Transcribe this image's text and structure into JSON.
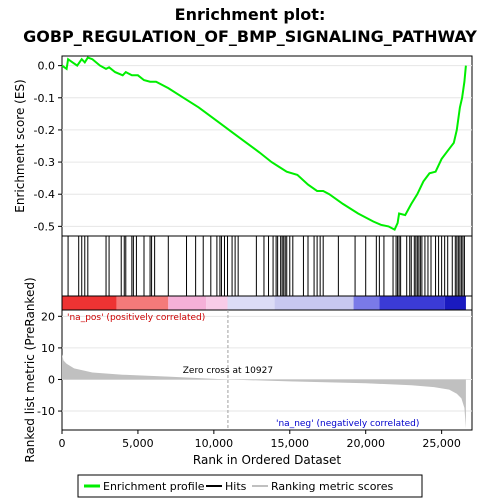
{
  "chart_data": {
    "type": "line",
    "title_line1": "Enrichment plot:",
    "title_line2": "GOBP_REGULATION_OF_BMP_SIGNALING_PATHWAY",
    "es_panel": {
      "ylabel": "Enrichment score (ES)",
      "ylim": [
        -0.53,
        0.03
      ],
      "yticks": [
        0.0,
        -0.1,
        -0.2,
        -0.3,
        -0.4,
        -0.5
      ],
      "ytick_labels": [
        "0.0",
        "-0.1",
        "-0.2",
        "-0.3",
        "-0.4",
        "-0.5"
      ],
      "color": "#00ee00",
      "points": [
        [
          0,
          0.0
        ],
        [
          300,
          -0.01
        ],
        [
          400,
          0.02
        ],
        [
          700,
          0.01
        ],
        [
          1000,
          0.0
        ],
        [
          1300,
          0.02
        ],
        [
          1500,
          0.01
        ],
        [
          1700,
          0.025
        ],
        [
          2000,
          0.02
        ],
        [
          2500,
          0.0
        ],
        [
          2900,
          -0.01
        ],
        [
          3100,
          -0.005
        ],
        [
          3500,
          -0.02
        ],
        [
          4000,
          -0.03
        ],
        [
          4200,
          -0.02
        ],
        [
          4600,
          -0.03
        ],
        [
          5000,
          -0.03
        ],
        [
          5400,
          -0.045
        ],
        [
          5800,
          -0.05
        ],
        [
          6200,
          -0.05
        ],
        [
          7000,
          -0.07
        ],
        [
          8000,
          -0.1
        ],
        [
          9000,
          -0.13
        ],
        [
          10000,
          -0.165
        ],
        [
          11000,
          -0.2
        ],
        [
          12000,
          -0.235
        ],
        [
          13000,
          -0.27
        ],
        [
          13800,
          -0.3
        ],
        [
          14300,
          -0.315
        ],
        [
          14800,
          -0.33
        ],
        [
          15500,
          -0.34
        ],
        [
          16200,
          -0.37
        ],
        [
          16800,
          -0.39
        ],
        [
          17200,
          -0.39
        ],
        [
          17600,
          -0.4
        ],
        [
          18500,
          -0.43
        ],
        [
          19500,
          -0.46
        ],
        [
          20500,
          -0.485
        ],
        [
          21000,
          -0.495
        ],
        [
          21500,
          -0.5
        ],
        [
          21900,
          -0.51
        ],
        [
          22100,
          -0.49
        ],
        [
          22200,
          -0.46
        ],
        [
          22600,
          -0.465
        ],
        [
          23000,
          -0.43
        ],
        [
          23400,
          -0.4
        ],
        [
          23800,
          -0.36
        ],
        [
          24200,
          -0.335
        ],
        [
          24600,
          -0.33
        ],
        [
          25000,
          -0.29
        ],
        [
          25400,
          -0.265
        ],
        [
          25800,
          -0.24
        ],
        [
          26000,
          -0.2
        ],
        [
          26200,
          -0.13
        ],
        [
          26350,
          -0.1
        ],
        [
          26500,
          -0.05
        ],
        [
          26600,
          0.0
        ]
      ]
    },
    "hits": [
      400,
      1100,
      1300,
      1500,
      1700,
      2900,
      3100,
      3900,
      4100,
      4200,
      4600,
      4700,
      4900,
      5400,
      5800,
      5900,
      6100,
      7000,
      8200,
      8800,
      9300,
      9800,
      10200,
      10400,
      10500,
      10700,
      10900,
      11200,
      11400,
      11600,
      12800,
      13300,
      13600,
      13900,
      14100,
      14200,
      14400,
      14500,
      14600,
      14700,
      14800,
      15000,
      15200,
      15900,
      16200,
      16600,
      16800,
      17000,
      17200,
      18200,
      19300,
      20000,
      20700,
      20900,
      21200,
      21800,
      22000,
      22100,
      22200,
      22300,
      22700,
      22900,
      23000,
      23200,
      23300,
      23400,
      23500,
      23600,
      23700,
      23900,
      24100,
      24300,
      24600,
      24800,
      25000,
      25200,
      25400,
      25700,
      25900,
      26000,
      26100,
      26200,
      26300,
      26400,
      26500
    ],
    "heatmap_blocks": [
      [
        0,
        3600,
        "#ee3333"
      ],
      [
        3600,
        7000,
        "#f47a7a"
      ],
      [
        7000,
        9500,
        "#f5b0d8"
      ],
      [
        9500,
        10900,
        "#f8cce8"
      ],
      [
        10900,
        14000,
        "#dcdcf6"
      ],
      [
        14000,
        19200,
        "#c8c8f0"
      ],
      [
        19200,
        20900,
        "#7a7ae8"
      ],
      [
        20900,
        25200,
        "#3b3bd6"
      ],
      [
        25200,
        26600,
        "#1a1ac0"
      ]
    ],
    "metric_panel": {
      "ylabel": "Ranked list metric (PreRanked)",
      "ylim": [
        -16,
        22
      ],
      "yticks": [
        20,
        10,
        0,
        -10
      ],
      "ytick_labels": [
        "20",
        "10",
        "0",
        "-10"
      ],
      "profile": [
        [
          0,
          8.0
        ],
        [
          100,
          6.0
        ],
        [
          300,
          5.0
        ],
        [
          800,
          3.5
        ],
        [
          2000,
          2.2
        ],
        [
          4000,
          1.5
        ],
        [
          7000,
          0.9
        ],
        [
          10927,
          0.0
        ],
        [
          15000,
          -0.6
        ],
        [
          20000,
          -1.2
        ],
        [
          23000,
          -1.8
        ],
        [
          24500,
          -2.4
        ],
        [
          25500,
          -3.2
        ],
        [
          26000,
          -4.5
        ],
        [
          26300,
          -6.0
        ],
        [
          26500,
          -9.0
        ],
        [
          26600,
          -15.5
        ]
      ],
      "zero_cross_label": "Zero cross at 10927",
      "zero_cross": 10927,
      "pos_label": "'na_pos' (positively correlated)",
      "neg_label": "'na_neg' (negatively correlated)"
    },
    "xlabel": "Rank in Ordered Dataset",
    "xlim": [
      0,
      27000
    ],
    "xticks": [
      0,
      5000,
      10000,
      15000,
      20000,
      25000
    ],
    "xtick_labels": [
      "0",
      "5,000",
      "10,000",
      "15,000",
      "20,000",
      "25,000"
    ],
    "legend": {
      "placement": "bottom",
      "items": [
        {
          "label": "Enrichment profile",
          "color": "#00ee00",
          "kind": "line"
        },
        {
          "label": "Hits",
          "color": "#000000",
          "kind": "line"
        },
        {
          "label": "Ranking metric scores",
          "color": "#c0c0c0",
          "kind": "line"
        }
      ]
    }
  }
}
